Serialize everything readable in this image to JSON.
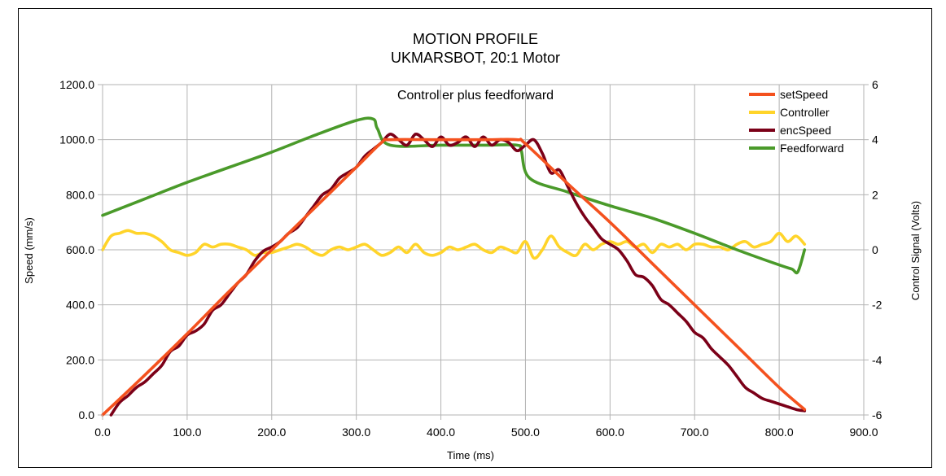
{
  "chart_data": {
    "type": "line",
    "title": "MOTION PROFILE",
    "subtitle": "UKMARSBOT, 20:1 Motor",
    "annotation": "Controller plus feedforward",
    "xlabel": "Time (ms)",
    "ylabel": "Speed (mm/s)",
    "y2label": "Control Signal (Volts)",
    "xlim": [
      0,
      900
    ],
    "ylim": [
      0,
      1200
    ],
    "y2lim": [
      -6,
      6
    ],
    "x_ticks": [
      "0.0",
      "100.0",
      "200.0",
      "300.0",
      "400.0",
      "500.0",
      "600.0",
      "700.0",
      "800.0",
      "900.0"
    ],
    "y_ticks": [
      "0.0",
      "200.0",
      "400.0",
      "600.0",
      "800.0",
      "1000.0",
      "1200.0"
    ],
    "y2_ticks": [
      "-6",
      "-4",
      "-2",
      "0",
      "2",
      "4",
      "6"
    ],
    "grid": true,
    "legend_position": "top-right",
    "series": [
      {
        "name": "setSpeed",
        "axis": "left",
        "color": "#f4511e",
        "x": [
          0,
          50,
          100,
          150,
          200,
          250,
          300,
          330,
          340,
          400,
          450,
          490,
          500,
          550,
          600,
          650,
          700,
          750,
          800,
          830
        ],
        "y": [
          0,
          145,
          295,
          450,
          600,
          750,
          900,
          990,
          1000,
          1000,
          1000,
          1000,
          985,
          840,
          700,
          550,
          400,
          250,
          100,
          20
        ]
      },
      {
        "name": "Controller",
        "axis": "right",
        "color": "#ffd42a",
        "x": [
          0,
          10,
          20,
          30,
          40,
          50,
          60,
          70,
          80,
          90,
          100,
          110,
          120,
          130,
          140,
          150,
          160,
          170,
          180,
          190,
          200,
          210,
          220,
          230,
          240,
          250,
          260,
          270,
          280,
          290,
          300,
          310,
          320,
          330,
          340,
          350,
          360,
          370,
          380,
          390,
          400,
          410,
          420,
          430,
          440,
          450,
          460,
          470,
          480,
          490,
          500,
          510,
          520,
          530,
          540,
          550,
          560,
          570,
          580,
          590,
          600,
          610,
          620,
          630,
          640,
          650,
          660,
          670,
          680,
          690,
          700,
          710,
          720,
          730,
          740,
          750,
          760,
          770,
          780,
          790,
          800,
          810,
          820,
          830
        ],
        "y": [
          0.0,
          0.5,
          0.6,
          0.7,
          0.6,
          0.6,
          0.5,
          0.3,
          0.0,
          -0.1,
          -0.2,
          -0.1,
          0.2,
          0.1,
          0.2,
          0.2,
          0.1,
          0.0,
          -0.2,
          -0.1,
          -0.1,
          0.0,
          0.1,
          0.2,
          0.1,
          -0.1,
          -0.2,
          0.0,
          0.1,
          0.0,
          0.1,
          0.2,
          0.0,
          -0.2,
          -0.1,
          0.1,
          -0.1,
          0.2,
          -0.1,
          -0.2,
          -0.1,
          0.1,
          0.0,
          0.1,
          0.2,
          0.0,
          -0.1,
          0.1,
          0.0,
          -0.1,
          0.3,
          -0.3,
          0.0,
          0.5,
          0.1,
          -0.1,
          -0.2,
          0.2,
          0.0,
          0.2,
          0.3,
          0.2,
          0.3,
          0.1,
          0.2,
          -0.1,
          0.2,
          0.1,
          0.2,
          0.0,
          0.2,
          0.2,
          0.1,
          0.1,
          0.0,
          0.2,
          0.3,
          0.1,
          0.2,
          0.3,
          0.6,
          0.3,
          0.5,
          0.2
        ]
      },
      {
        "name": "encSpeed",
        "axis": "left",
        "color": "#7b0018",
        "x": [
          10,
          20,
          30,
          40,
          50,
          60,
          70,
          80,
          90,
          100,
          110,
          120,
          130,
          140,
          150,
          160,
          170,
          180,
          190,
          200,
          210,
          220,
          230,
          240,
          250,
          260,
          270,
          280,
          290,
          300,
          310,
          320,
          330,
          340,
          350,
          360,
          370,
          380,
          390,
          400,
          410,
          420,
          430,
          440,
          450,
          460,
          470,
          480,
          490,
          500,
          510,
          520,
          530,
          540,
          550,
          560,
          570,
          580,
          590,
          600,
          610,
          620,
          630,
          640,
          650,
          660,
          670,
          680,
          690,
          700,
          710,
          720,
          730,
          740,
          750,
          760,
          770,
          780,
          790,
          800,
          810,
          820,
          830
        ],
        "y": [
          0,
          45,
          70,
          100,
          120,
          150,
          180,
          230,
          250,
          290,
          305,
          330,
          380,
          400,
          440,
          480,
          510,
          560,
          595,
          610,
          630,
          660,
          680,
          720,
          760,
          800,
          820,
          860,
          880,
          900,
          940,
          965,
          990,
          1020,
          1000,
          980,
          1020,
          1000,
          975,
          1010,
          980,
          990,
          1010,
          975,
          1010,
          980,
          1000,
          990,
          960,
          980,
          1000,
          950,
          880,
          890,
          830,
          770,
          720,
          680,
          640,
          620,
          600,
          560,
          510,
          500,
          470,
          420,
          400,
          370,
          340,
          300,
          280,
          240,
          210,
          180,
          140,
          100,
          80,
          60,
          50,
          40,
          30,
          20,
          15
        ]
      },
      {
        "name": "Feedforward",
        "axis": "right",
        "color": "#4a9a2a",
        "x": [
          0,
          50,
          100,
          150,
          200,
          250,
          300,
          320,
          325,
          340,
          400,
          450,
          490,
          495,
          505,
          550,
          600,
          650,
          700,
          750,
          800,
          815,
          822,
          830
        ],
        "y": [
          1.25,
          1.85,
          2.45,
          3.0,
          3.55,
          4.15,
          4.7,
          4.75,
          4.4,
          3.8,
          3.8,
          3.8,
          3.8,
          3.6,
          2.6,
          2.1,
          1.6,
          1.15,
          0.6,
          0.0,
          -0.55,
          -0.7,
          -0.8,
          0.0
        ]
      }
    ]
  }
}
